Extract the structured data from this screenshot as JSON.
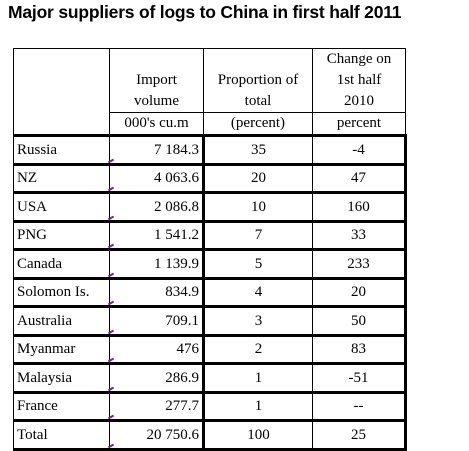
{
  "title": "Major suppliers of logs to China in first half 2011",
  "columns": {
    "import": {
      "line1": "Import",
      "line2": "volume",
      "unit": "000's cu.m"
    },
    "proportion": {
      "line1": "Proportion of",
      "line2": "total",
      "unit": "(percent)"
    },
    "change": {
      "line1": "Change on",
      "line2": "1st half",
      "line3": "2010",
      "unit": "percent"
    }
  },
  "rows": [
    {
      "country": "Russia",
      "volume": "7 184.3",
      "proportion": "35",
      "change": "-4"
    },
    {
      "country": "NZ",
      "volume": "4 063.6",
      "proportion": "20",
      "change": "47"
    },
    {
      "country": "USA",
      "volume": "2 086.8",
      "proportion": "10",
      "change": "160"
    },
    {
      "country": "PNG",
      "volume": "1 541.2",
      "proportion": "7",
      "change": "33"
    },
    {
      "country": "Canada",
      "volume": "1 139.9",
      "proportion": "5",
      "change": "233"
    },
    {
      "country": "Solomon Is.",
      "volume": "834.9",
      "proportion": "4",
      "change": "20"
    },
    {
      "country": "Australia",
      "volume": "709.1",
      "proportion": "3",
      "change": "50"
    },
    {
      "country": "Myanmar",
      "volume": "476",
      "proportion": "2",
      "change": "83"
    },
    {
      "country": "Malaysia",
      "volume": "286.9",
      "proportion": "1",
      "change": "-51"
    },
    {
      "country": "France",
      "volume": "277.7",
      "proportion": "1",
      "change": "--"
    },
    {
      "country": "Total",
      "volume": "20 750.6",
      "proportion": "100",
      "change": "25"
    }
  ]
}
